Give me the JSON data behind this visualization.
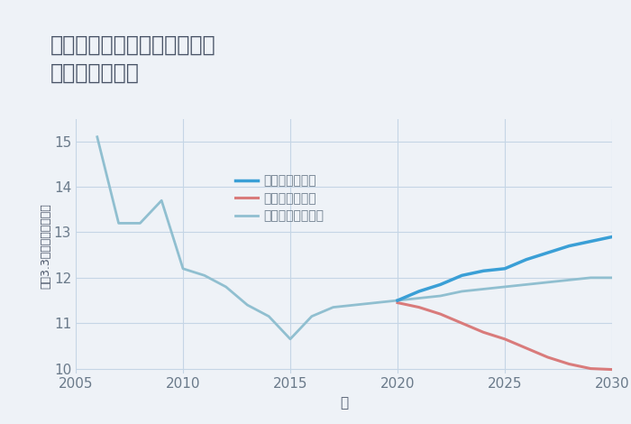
{
  "title": "三重県桑名市長島町西外面の\n土地の価格推移",
  "xlabel": "年",
  "ylabel": "坪（3.3㎡）単価（万円）",
  "background_color": "#eef2f7",
  "plot_background": "#eef2f7",
  "good_scenario": {
    "label": "グッドシナリオ",
    "color": "#3a9fd6",
    "x": [
      2020,
      2021,
      2022,
      2023,
      2024,
      2025,
      2026,
      2027,
      2028,
      2029,
      2030
    ],
    "y": [
      11.5,
      11.7,
      11.85,
      12.05,
      12.15,
      12.2,
      12.4,
      12.55,
      12.7,
      12.8,
      12.9
    ]
  },
  "bad_scenario": {
    "label": "バッドシナリオ",
    "color": "#d97b7b",
    "x": [
      2020,
      2021,
      2022,
      2023,
      2024,
      2025,
      2026,
      2027,
      2028,
      2029,
      2030
    ],
    "y": [
      11.45,
      11.35,
      11.2,
      11.0,
      10.8,
      10.65,
      10.45,
      10.25,
      10.1,
      10.0,
      9.98
    ]
  },
  "normal_scenario": {
    "label": "ノーマルシナリオ",
    "color": "#90bfd0",
    "x_hist": [
      2006,
      2007,
      2008,
      2009,
      2010,
      2011,
      2012,
      2013,
      2014,
      2015,
      2016,
      2017,
      2018,
      2019,
      2020
    ],
    "y_hist": [
      15.1,
      13.2,
      13.2,
      13.7,
      12.2,
      12.05,
      11.8,
      11.4,
      11.15,
      10.65,
      11.15,
      11.35,
      11.4,
      11.45,
      11.5
    ],
    "x_future": [
      2020,
      2021,
      2022,
      2023,
      2024,
      2025,
      2026,
      2027,
      2028,
      2029,
      2030
    ],
    "y_future": [
      11.5,
      11.55,
      11.6,
      11.7,
      11.75,
      11.8,
      11.85,
      11.9,
      11.95,
      12.0,
      12.0
    ]
  },
  "xlim": [
    2005,
    2030
  ],
  "ylim": [
    9.9,
    15.5
  ],
  "yticks": [
    10,
    11,
    12,
    13,
    14,
    15
  ],
  "xticks": [
    2005,
    2010,
    2015,
    2020,
    2025,
    2030
  ],
  "title_fontsize": 17,
  "axis_fontsize": 11,
  "legend_fontsize": 10,
  "grid_color": "#c5d5e5",
  "title_color": "#4a5568",
  "axis_label_color": "#4a5568",
  "tick_color": "#6a7a8a"
}
